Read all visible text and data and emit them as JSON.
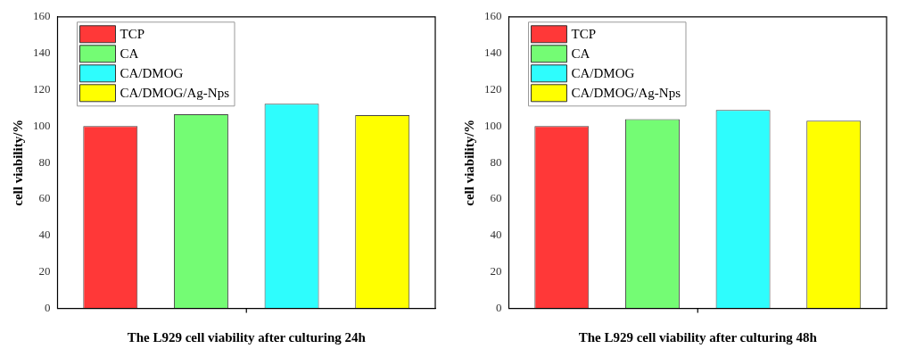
{
  "chart_data": [
    {
      "type": "bar",
      "xlabel": "The L929 cell viability after culturing 24h",
      "ylabel": "cell viability/%",
      "categories": [
        null
      ],
      "ylim": [
        0,
        160
      ],
      "yticks": [
        0,
        20,
        40,
        60,
        80,
        100,
        120,
        140,
        160
      ],
      "grid": false,
      "legend": "top left",
      "series": [
        {
          "name": "TCP",
          "color": "#ff3838",
          "values": [
            100
          ]
        },
        {
          "name": "CA",
          "color": "#74fc74",
          "values": [
            106.5
          ]
        },
        {
          "name": "CA/DMOG",
          "color": "#2efdfd",
          "values": [
            112.3
          ]
        },
        {
          "name": "CA/DMOG/Ag-Nps",
          "color": "#ffff00",
          "values": [
            106.1
          ]
        }
      ]
    },
    {
      "type": "bar",
      "xlabel": "The L929 cell viability after culturing 48h",
      "ylabel": "cell viability/%",
      "categories": [
        null
      ],
      "ylim": [
        0,
        160
      ],
      "yticks": [
        0,
        20,
        40,
        60,
        80,
        100,
        120,
        140,
        160
      ],
      "grid": false,
      "legend": "top left",
      "series": [
        {
          "name": "TCP",
          "color": "#ff3838",
          "values": [
            100
          ]
        },
        {
          "name": "CA",
          "color": "#74fc74",
          "values": [
            103.8
          ]
        },
        {
          "name": "CA/DMOG",
          "color": "#2efdfd",
          "values": [
            108.9
          ]
        },
        {
          "name": "CA/DMOG/Ag-Nps",
          "color": "#ffff00",
          "values": [
            103
          ]
        }
      ]
    }
  ]
}
